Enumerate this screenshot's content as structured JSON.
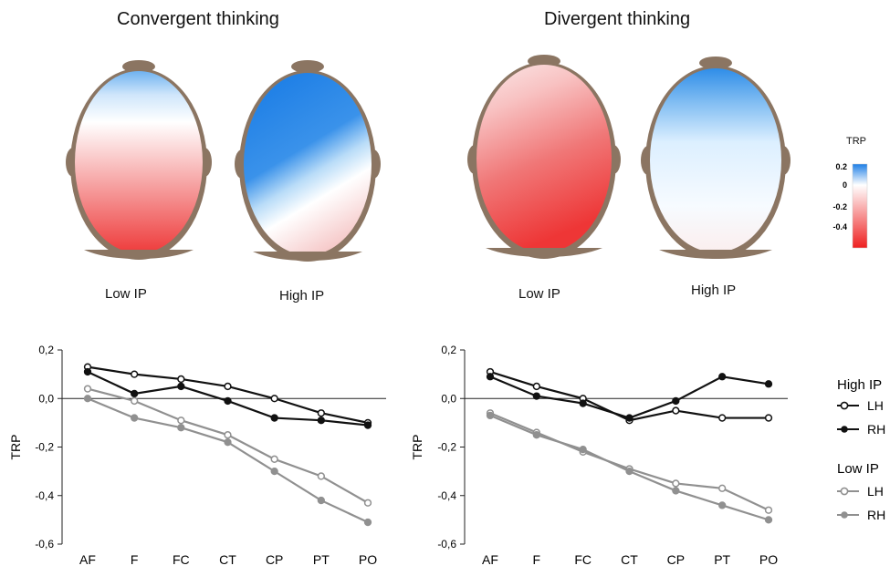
{
  "titles": {
    "left": "Convergent thinking",
    "right": "Divergent thinking"
  },
  "head_labels": {
    "conv_low": "Low IP",
    "conv_high": "High IP",
    "div_low": "Low IP",
    "div_high": "High IP"
  },
  "colors": {
    "positive": "#1e7fe0",
    "zero": "#ffffff",
    "negative": "#ee3a3a",
    "skin": "#8b7562",
    "high_ip_line": "#111111",
    "low_ip_line": "#909090"
  },
  "colorbar": {
    "title": "TRP",
    "ticks": [
      "0.2",
      "0",
      "-0.2",
      "-0.4"
    ]
  },
  "legend": {
    "high_title": "High IP",
    "low_title": "Low IP",
    "lh": "LH",
    "rh": "RH"
  },
  "chart_data": [
    {
      "type": "line",
      "title": "",
      "xlabel": "",
      "ylabel": "TRP",
      "ylim": [
        -0.6,
        0.2
      ],
      "yticks": [
        "0,2",
        "0,0",
        "-0,2",
        "-0,4",
        "-0,6"
      ],
      "categories": [
        "AF",
        "F",
        "FC",
        "CT",
        "CP",
        "PT",
        "PO"
      ],
      "series": [
        {
          "name": "High IP LH",
          "values": [
            0.13,
            0.1,
            0.08,
            0.05,
            0.0,
            -0.06,
            -0.1
          ]
        },
        {
          "name": "High IP RH",
          "values": [
            0.11,
            0.02,
            0.05,
            -0.01,
            -0.08,
            -0.09,
            -0.11
          ]
        },
        {
          "name": "Low IP LH",
          "values": [
            0.04,
            -0.01,
            -0.09,
            -0.15,
            -0.25,
            -0.32,
            -0.43
          ]
        },
        {
          "name": "Low IP RH",
          "values": [
            0.0,
            -0.08,
            -0.12,
            -0.18,
            -0.3,
            -0.42,
            -0.51
          ]
        }
      ]
    },
    {
      "type": "line",
      "title": "",
      "xlabel": "",
      "ylabel": "TRP",
      "ylim": [
        -0.6,
        0.2
      ],
      "yticks": [
        "0,2",
        "0,0",
        "-0,2",
        "-0,4",
        "-0,6"
      ],
      "categories": [
        "AF",
        "F",
        "FC",
        "CT",
        "CP",
        "PT",
        "PO"
      ],
      "series": [
        {
          "name": "High IP LH",
          "values": [
            0.11,
            0.05,
            0.0,
            -0.09,
            -0.05,
            -0.08,
            -0.08
          ]
        },
        {
          "name": "High IP RH",
          "values": [
            0.09,
            0.01,
            -0.02,
            -0.08,
            -0.01,
            0.09,
            0.06
          ]
        },
        {
          "name": "Low IP LH",
          "values": [
            -0.06,
            -0.14,
            -0.22,
            -0.29,
            -0.35,
            -0.37,
            -0.46
          ]
        },
        {
          "name": "Low IP RH",
          "values": [
            -0.07,
            -0.15,
            -0.21,
            -0.3,
            -0.38,
            -0.44,
            -0.5
          ]
        }
      ]
    }
  ]
}
